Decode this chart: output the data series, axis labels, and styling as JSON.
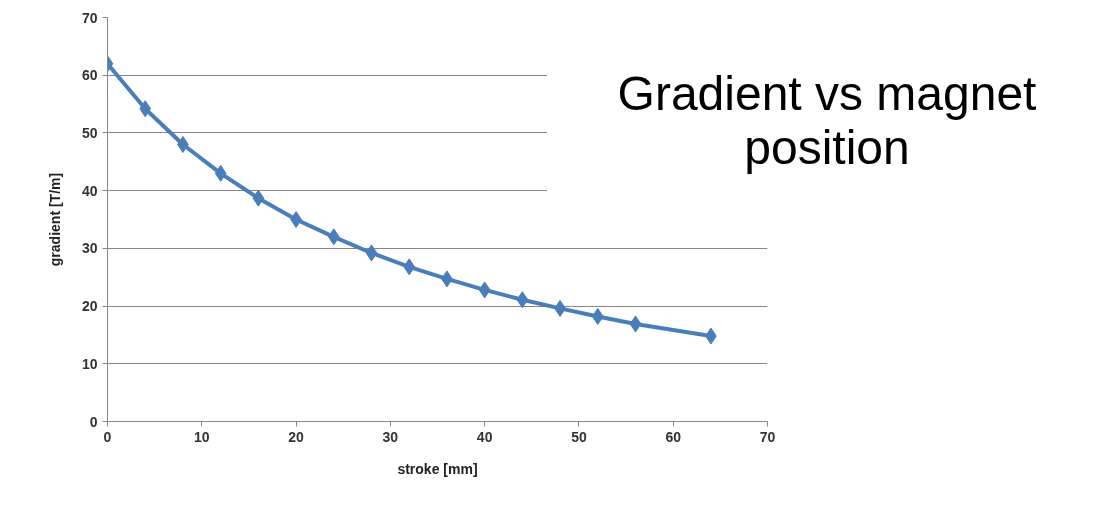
{
  "chart_data": {
    "type": "line",
    "title": "Gradient vs magnet position",
    "xlabel": "stroke [mm]",
    "ylabel": "gradient [T/m]",
    "x": [
      0,
      4,
      8,
      12,
      16,
      20,
      24,
      28,
      32,
      36,
      40,
      44,
      48,
      52,
      56,
      64
    ],
    "series": [
      {
        "color": "#4a7ebb",
        "values": [
          62,
          54.2,
          48,
          43,
          38.7,
          35,
          32,
          29.2,
          26.8,
          24.7,
          22.8,
          21.1,
          19.6,
          18.2,
          16.9,
          14.8
        ]
      }
    ],
    "xlim": [
      0,
      70
    ],
    "ylim": [
      0,
      70
    ],
    "xticks": [
      0,
      10,
      20,
      30,
      40,
      50,
      60,
      70
    ],
    "yticks": [
      0,
      10,
      20,
      30,
      40,
      50,
      60,
      70
    ],
    "grid": "y",
    "marker": "diamond",
    "line_style": "solid"
  }
}
